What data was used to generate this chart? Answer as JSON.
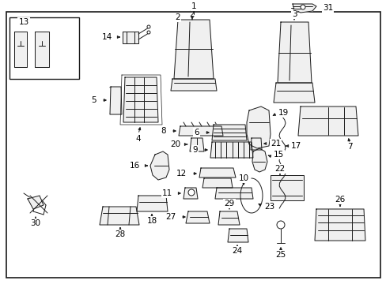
{
  "background_color": "#ffffff",
  "border_color": "#000000",
  "line_color": "#1a1a1a",
  "fig_width": 4.89,
  "fig_height": 3.6,
  "dpi": 100
}
